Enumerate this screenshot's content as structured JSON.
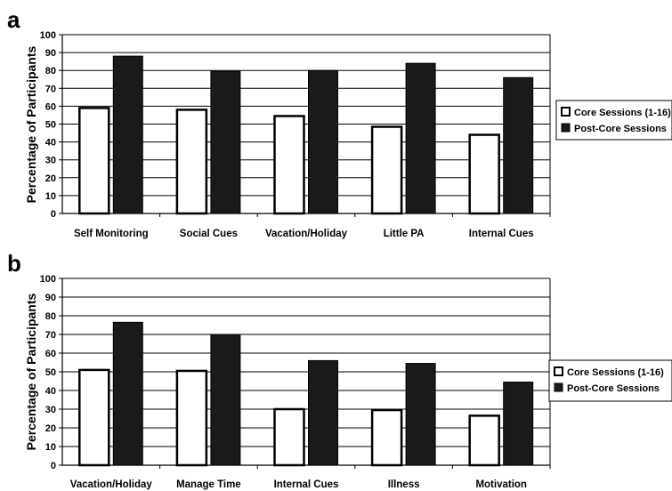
{
  "chart_data": [
    {
      "type": "bar",
      "panel": "a",
      "ylabel": "Percentage of Participants",
      "ylim": [
        0,
        100
      ],
      "yticks": [
        "0",
        "10",
        "20",
        "30",
        "40",
        "50",
        "60",
        "70",
        "80",
        "90",
        "100"
      ],
      "grid": true,
      "legend_position": "right",
      "categories": [
        "Self Monitoring",
        "Social Cues",
        "Vacation/Holiday",
        "Little PA",
        "Internal Cues"
      ],
      "series": [
        {
          "name": "Core Sessions (1-16)",
          "color": "#ffffff",
          "values": [
            59,
            58,
            54.5,
            48.5,
            44
          ]
        },
        {
          "name": "Post-Core Sessions",
          "color": "#1a1a1a",
          "values": [
            88,
            79.5,
            80,
            84,
            76
          ]
        }
      ]
    },
    {
      "type": "bar",
      "panel": "b",
      "ylabel": "Percentage of Participants",
      "ylim": [
        0,
        100
      ],
      "yticks": [
        "0",
        "10",
        "20",
        "30",
        "40",
        "50",
        "60",
        "70",
        "80",
        "90",
        "100"
      ],
      "grid": true,
      "legend_position": "right",
      "categories": [
        "Vacation/Holiday",
        "Manage Time",
        "Internal Cues",
        "Illness",
        "Motivation"
      ],
      "series": [
        {
          "name": "Core Sessions (1-16)",
          "color": "#ffffff",
          "values": [
            51,
            50.5,
            30,
            29.5,
            26.5
          ]
        },
        {
          "name": "Post-Core Sessions",
          "color": "#1a1a1a",
          "values": [
            76.5,
            70,
            56,
            54.5,
            44.5
          ]
        }
      ]
    }
  ]
}
